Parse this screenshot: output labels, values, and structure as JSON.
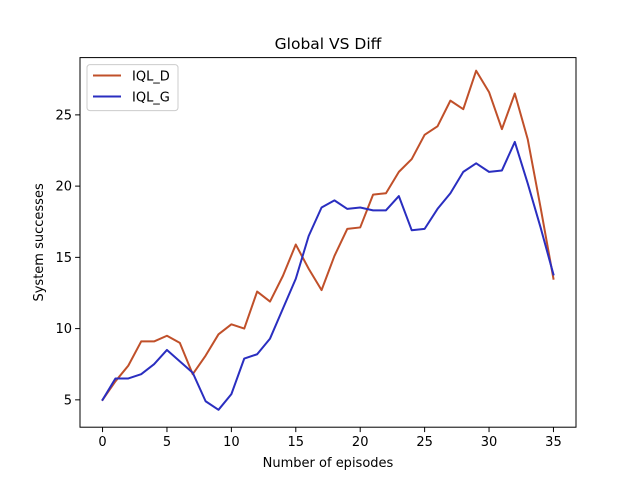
{
  "chart_data": {
    "type": "line",
    "title": "Global VS Diff",
    "xlabel": "Number of episodes",
    "ylabel": "System successes",
    "xlim": [
      -1.75,
      36.75
    ],
    "ylim": [
      3.08,
      29.02
    ],
    "xticks": [
      0,
      5,
      10,
      15,
      20,
      25,
      30,
      35
    ],
    "yticks": [
      5,
      10,
      15,
      20,
      25
    ],
    "grid": false,
    "legend_position": "top-left",
    "x": [
      0,
      1,
      2,
      3,
      4,
      5,
      6,
      7,
      8,
      9,
      10,
      11,
      12,
      13,
      14,
      15,
      16,
      17,
      18,
      19,
      20,
      21,
      22,
      23,
      24,
      25,
      26,
      27,
      28,
      29,
      30,
      31,
      32,
      33,
      34,
      35
    ],
    "series": [
      {
        "name": "IQL_D",
        "color": "#c0502a",
        "values": [
          5.0,
          6.3,
          7.4,
          9.1,
          9.1,
          9.5,
          9.0,
          6.8,
          8.1,
          9.6,
          10.3,
          10.0,
          12.6,
          11.9,
          13.7,
          15.9,
          14.2,
          12.7,
          15.1,
          17.0,
          17.1,
          19.4,
          19.5,
          21.0,
          21.9,
          23.6,
          24.2,
          26.0,
          25.4,
          28.1,
          26.6,
          24.0,
          26.5,
          23.3,
          18.5,
          13.5
        ]
      },
      {
        "name": "IQL_G",
        "color": "#2a2ec0",
        "values": [
          5.0,
          6.5,
          6.5,
          6.8,
          7.5,
          8.5,
          7.7,
          6.9,
          4.9,
          4.3,
          5.4,
          7.9,
          8.2,
          9.3,
          11.4,
          13.5,
          16.5,
          18.5,
          19.0,
          18.4,
          18.5,
          18.3,
          18.3,
          19.3,
          16.9,
          17.0,
          18.4,
          19.5,
          21.0,
          21.6,
          21.0,
          21.1,
          23.1,
          20.2,
          17.1,
          13.8
        ]
      }
    ]
  }
}
